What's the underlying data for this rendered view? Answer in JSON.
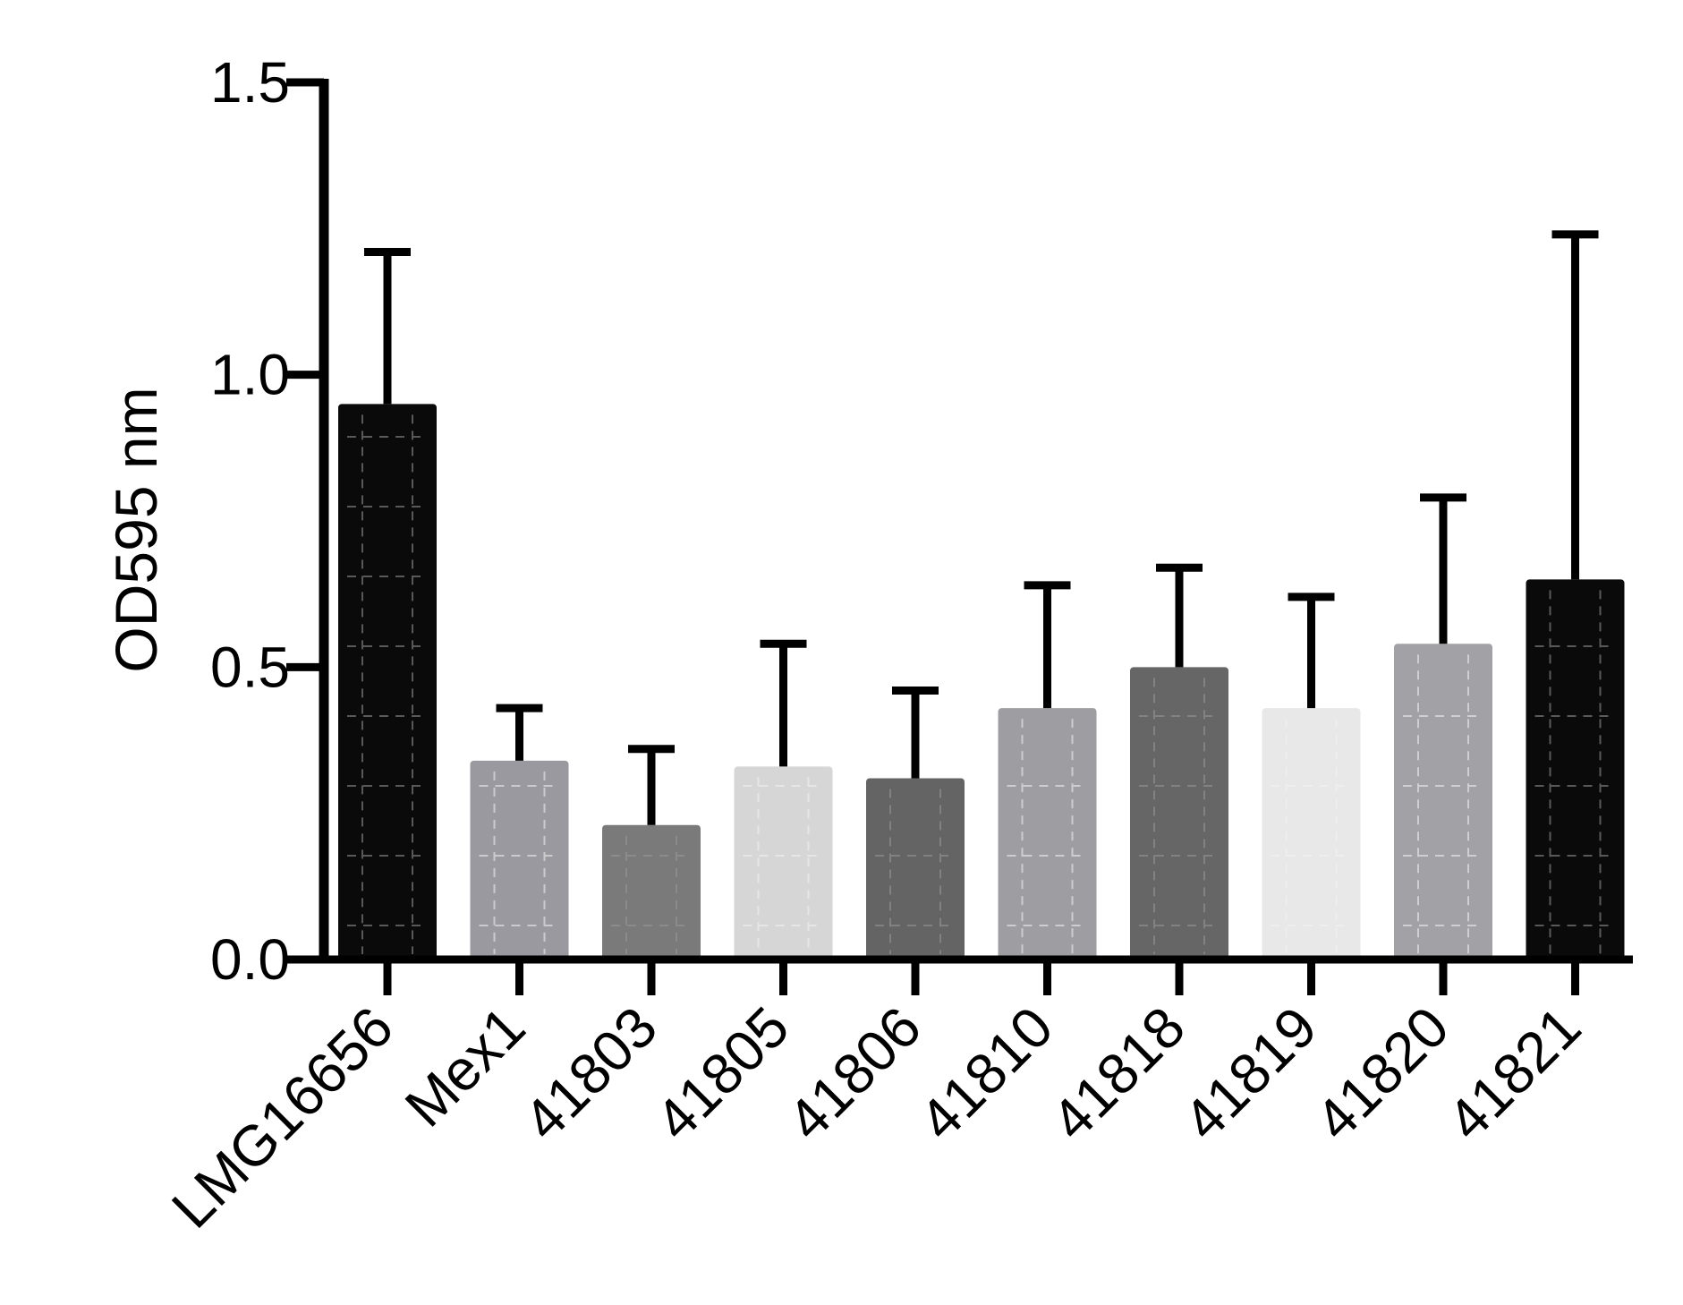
{
  "chart_data": {
    "type": "bar",
    "title": "",
    "xlabel": "",
    "ylabel": "OD595 nm",
    "ylim": [
      0,
      1.5
    ],
    "yticks": [
      "0.0",
      "0.5",
      "1.0",
      "1.5"
    ],
    "grid": false,
    "legend": "none",
    "categories": [
      "LMG16656",
      "Mex1",
      "41803",
      "41805",
      "41806",
      "41810",
      "41818",
      "41819",
      "41820",
      "41821"
    ],
    "values": [
      0.95,
      0.34,
      0.23,
      0.33,
      0.31,
      0.43,
      0.5,
      0.43,
      0.54,
      0.65
    ],
    "error": [
      0.26,
      0.09,
      0.13,
      0.21,
      0.15,
      0.21,
      0.17,
      0.19,
      0.25,
      0.59
    ],
    "colors": [
      "#0a0a0a",
      "#9a99a0",
      "#7a7a7a",
      "#d6d6d6",
      "#646464",
      "#9e9da2",
      "#666666",
      "#e8e8e8",
      "#a2a1a6",
      "#0a0a0a"
    ]
  }
}
